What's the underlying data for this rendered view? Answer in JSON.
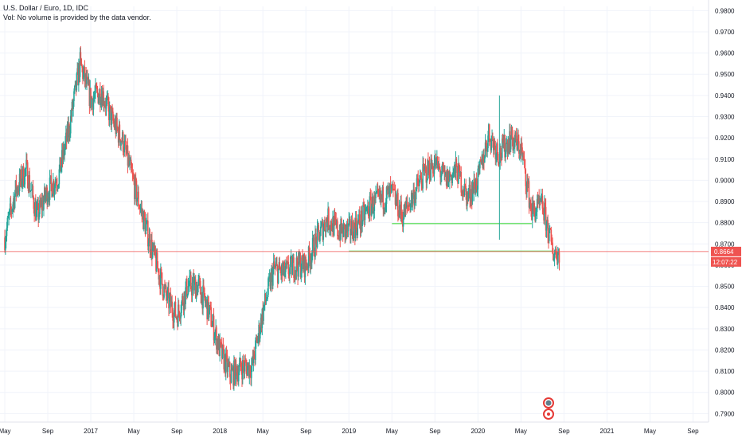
{
  "legend": {
    "title": "U.S. Dollar / Euro, 1D, IDC",
    "volume_note": "Vol: No volume is provided by the data vendor."
  },
  "price_tag": {
    "value": "0.8664",
    "countdown": "12:07:22",
    "color": "#ef5350"
  },
  "colors": {
    "up": "#26a69a",
    "down": "#ef5350",
    "grid": "#f0f3fa",
    "support": "#76e276"
  },
  "icons": [
    "pattern-marker-icon",
    "earnings-marker-icon"
  ],
  "chart_data": {
    "type": "candlestick",
    "title": "U.S. Dollar / Euro, 1D, IDC",
    "ylim": [
      0.786,
      0.982
    ],
    "y_ticks": [
      "0.9800",
      "0.9700",
      "0.9600",
      "0.9500",
      "0.9400",
      "0.9300",
      "0.9200",
      "0.9100",
      "0.9000",
      "0.8900",
      "0.8800",
      "0.8700",
      "0.8600",
      "0.8500",
      "0.8400",
      "0.8300",
      "0.8200",
      "0.8100",
      "0.8000",
      "0.7900"
    ],
    "x_ticks": [
      "May",
      "Sep",
      "2017",
      "May",
      "Sep",
      "2018",
      "May",
      "Sep",
      "2019",
      "May",
      "Sep",
      "2020",
      "May",
      "Sep",
      "2021",
      "May",
      "Sep"
    ],
    "x_tick_dates": [
      "2016-05",
      "2016-09",
      "2017-01",
      "2017-05",
      "2017-09",
      "2018-01",
      "2018-05",
      "2018-09",
      "2019-01",
      "2019-05",
      "2019-09",
      "2020-01",
      "2020-05",
      "2020-09",
      "2021-01",
      "2021-05",
      "2021-09"
    ],
    "xlim": [
      "2016-05",
      "2021-10"
    ],
    "last_price": 0.8664,
    "grid": true,
    "close_path": [
      [
        "2016-05",
        0.873
      ],
      [
        "2016-06",
        0.895
      ],
      [
        "2016-07",
        0.905
      ],
      [
        "2016-08",
        0.883
      ],
      [
        "2016-09",
        0.895
      ],
      [
        "2016-10",
        0.902
      ],
      [
        "2016-11",
        0.925
      ],
      [
        "2016-12",
        0.955
      ],
      [
        "2017-01",
        0.938
      ],
      [
        "2017-02",
        0.942
      ],
      [
        "2017-03",
        0.928
      ],
      [
        "2017-04",
        0.918
      ],
      [
        "2017-05",
        0.898
      ],
      [
        "2017-06",
        0.88
      ],
      [
        "2017-07",
        0.862
      ],
      [
        "2017-08",
        0.845
      ],
      [
        "2017-09",
        0.836
      ],
      [
        "2017-10",
        0.85
      ],
      [
        "2017-11",
        0.85
      ],
      [
        "2017-12",
        0.838
      ],
      [
        "2018-01",
        0.82
      ],
      [
        "2018-02",
        0.808
      ],
      [
        "2018-03",
        0.812
      ],
      [
        "2018-04",
        0.812
      ],
      [
        "2018-05",
        0.838
      ],
      [
        "2018-06",
        0.858
      ],
      [
        "2018-07",
        0.856
      ],
      [
        "2018-08",
        0.86
      ],
      [
        "2018-09",
        0.86
      ],
      [
        "2018-10",
        0.872
      ],
      [
        "2018-11",
        0.882
      ],
      [
        "2018-12",
        0.876
      ],
      [
        "2019-01",
        0.876
      ],
      [
        "2019-02",
        0.88
      ],
      [
        "2019-03",
        0.888
      ],
      [
        "2019-04",
        0.891
      ],
      [
        "2019-05",
        0.894
      ],
      [
        "2019-06",
        0.883
      ],
      [
        "2019-07",
        0.893
      ],
      [
        "2019-08",
        0.903
      ],
      [
        "2019-09",
        0.908
      ],
      [
        "2019-10",
        0.9
      ],
      [
        "2019-11",
        0.905
      ],
      [
        "2019-12",
        0.892
      ],
      [
        "2020-01",
        0.9
      ],
      [
        "2020-02",
        0.922
      ],
      [
        "2020-03",
        0.912
      ],
      [
        "2020-04",
        0.92
      ],
      [
        "2020-05",
        0.915
      ],
      [
        "2020-06",
        0.885
      ],
      [
        "2020-07",
        0.888
      ],
      [
        "2020-08",
        0.866
      ]
    ],
    "candle_spikes": [
      [
        "2020-03",
        0.872,
        0.94
      ]
    ],
    "horizontal_lines": [
      {
        "name": "support-level-1",
        "start": "2019-05",
        "end": "2020-06",
        "value": 0.8796
      },
      {
        "name": "support-level-2",
        "start": "2019-01",
        "end": "2020-08",
        "value": 0.8666
      }
    ]
  }
}
